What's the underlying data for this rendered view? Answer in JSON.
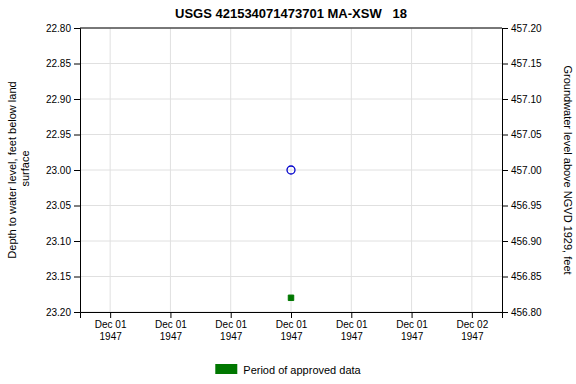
{
  "chart_data": {
    "type": "scatter",
    "title": "USGS 421534071473701 MA-XSW   18",
    "y_label": "Depth to water level, feet below land\n surface",
    "y2_label": "Groundwater level above NGVD 1929, feet",
    "categories": [
      "Dec 01\n1947",
      "Dec 01\n1947",
      "Dec 01\n1947",
      "Dec 01\n1947",
      "Dec 01\n1947",
      "Dec 01\n1947",
      "Dec 02\n1947"
    ],
    "series": [
      {
        "color": "#0000cc",
        "marker": "open-circle",
        "values": [
          null,
          null,
          null,
          23.0,
          null,
          null,
          null
        ]
      },
      {
        "name": "Period of approved data",
        "color": "#007700",
        "marker": "square",
        "values": [
          null,
          null,
          null,
          23.18,
          null,
          null,
          null
        ]
      }
    ],
    "ylim": [
      23.2,
      22.8
    ],
    "yticks": [
      {
        "value": 22.8,
        "label": "22.80"
      },
      {
        "value": 22.85,
        "label": "22.85"
      },
      {
        "value": 22.9,
        "label": "22.90"
      },
      {
        "value": 22.95,
        "label": "22.95"
      },
      {
        "value": 23.0,
        "label": "23.00"
      },
      {
        "value": 23.05,
        "label": "23.05"
      },
      {
        "value": 23.1,
        "label": "23.10"
      },
      {
        "value": 23.15,
        "label": "23.15"
      },
      {
        "value": 23.2,
        "label": "23.20"
      }
    ],
    "y2lim": [
      456.8,
      457.2
    ],
    "y2ticks": [
      {
        "value": 457.2,
        "label": "457.20"
      },
      {
        "value": 457.15,
        "label": "457.15"
      },
      {
        "value": 457.1,
        "label": "457.10"
      },
      {
        "value": 457.05,
        "label": "457.05"
      },
      {
        "value": 457.0,
        "label": "457.00"
      },
      {
        "value": 456.95,
        "label": "456.95"
      },
      {
        "value": 456.9,
        "label": "456.90"
      },
      {
        "value": 456.85,
        "label": "456.85"
      },
      {
        "value": 456.8,
        "label": "456.80"
      }
    ],
    "grid": true,
    "legend": "bottom"
  }
}
